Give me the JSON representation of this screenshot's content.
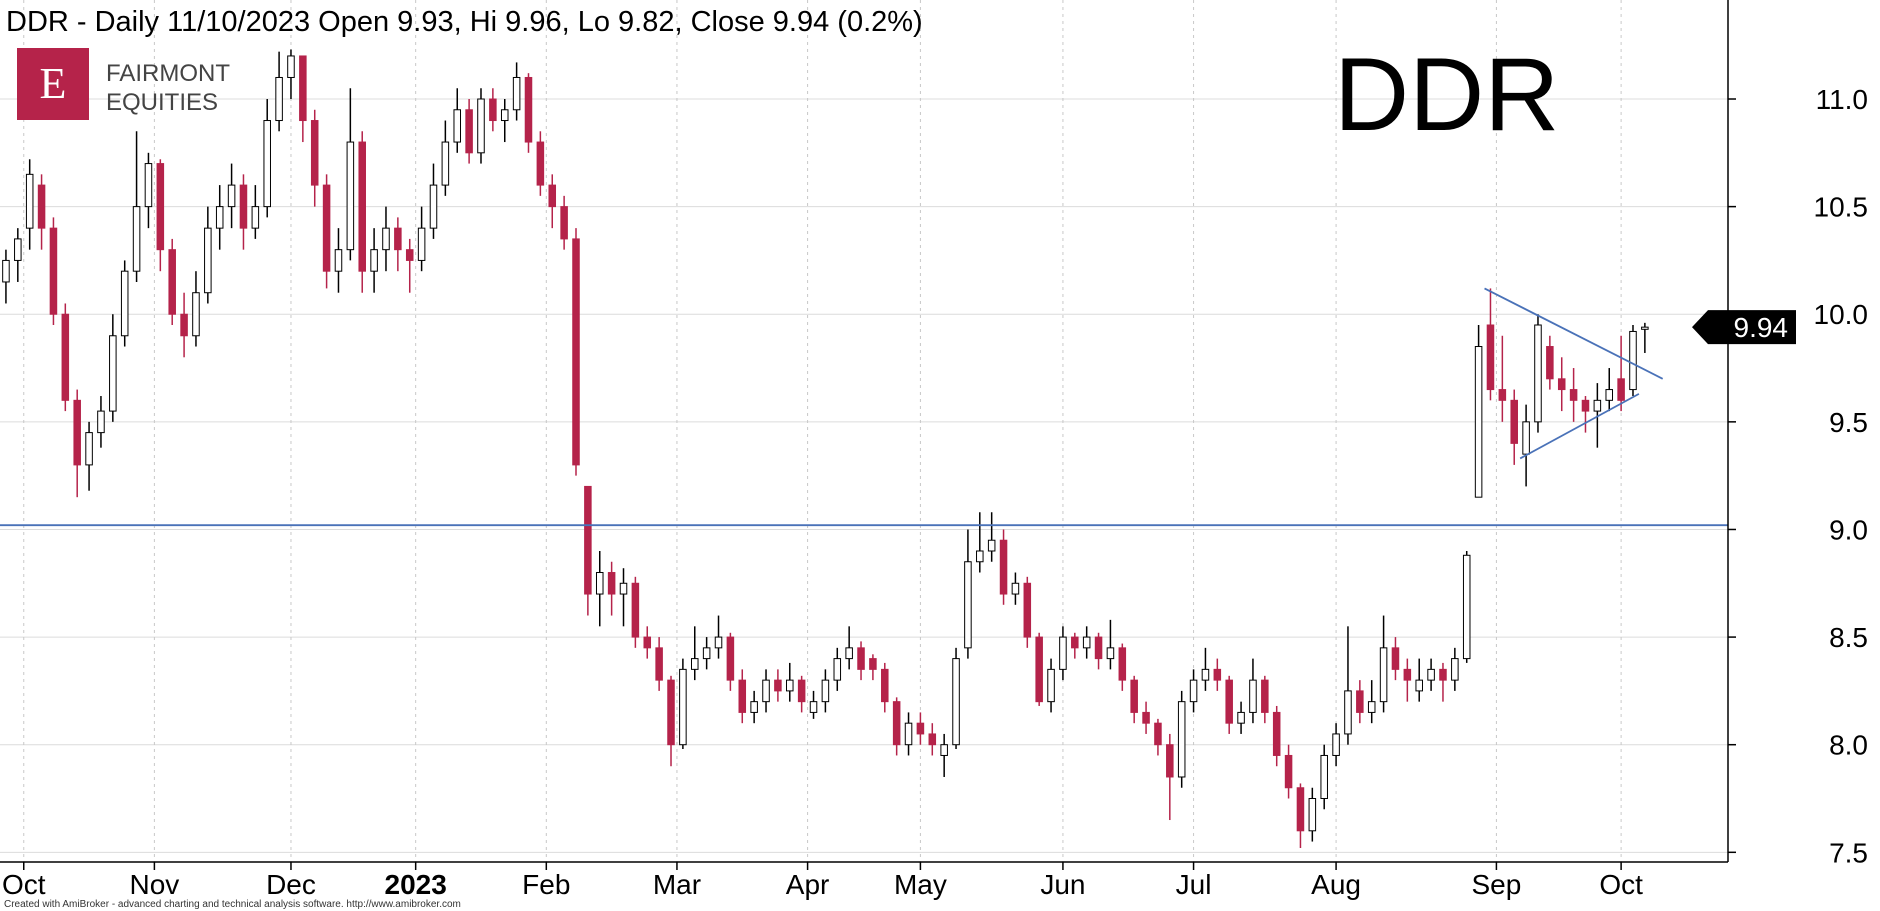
{
  "chart_data": {
    "type": "candlestick",
    "title": "DDR - Daily 11/10/2023 Open 9.93, Hi 9.96, Lo 9.82, Close 9.94 (0.2%)",
    "symbol": "DDR",
    "logo": {
      "letter": "E",
      "line1": "FAIRMONT",
      "line2": "EQUITIES"
    },
    "footer": "Created with AmiBroker - advanced charting and technical analysis software. http://www.amibroker.com",
    "up_color": "#ffffff",
    "down_color": "#b5234a",
    "edge_color": "#000000",
    "open": [
      10.15,
      10.25,
      10.4,
      10.6,
      10.4,
      10.0,
      9.6,
      9.3,
      9.45,
      9.55,
      9.9,
      10.2,
      10.5,
      10.7,
      10.3,
      10.0,
      9.9,
      10.1,
      10.4,
      10.5,
      10.6,
      10.4,
      10.5,
      10.9,
      11.1,
      11.2,
      10.9,
      10.6,
      10.2,
      10.3,
      10.8,
      10.2,
      10.3,
      10.4,
      10.3,
      10.25,
      10.4,
      10.6,
      10.8,
      10.95,
      10.75,
      11.0,
      10.9,
      10.95,
      11.1,
      10.8,
      10.6,
      10.5,
      10.35,
      9.2,
      8.7,
      8.8,
      8.7,
      8.75,
      8.5,
      8.45,
      8.3,
      8.0,
      8.35,
      8.4,
      8.45,
      8.5,
      8.3,
      8.15,
      8.2,
      8.3,
      8.25,
      8.3,
      8.15,
      8.2,
      8.3,
      8.4,
      8.45,
      8.4,
      8.35,
      8.2,
      8.0,
      8.1,
      8.05,
      7.95,
      8.0,
      8.45,
      8.85,
      8.9,
      8.95,
      8.7,
      8.75,
      8.5,
      8.2,
      8.35,
      8.5,
      8.45,
      8.5,
      8.4,
      8.45,
      8.3,
      8.15,
      8.1,
      8.0,
      7.85,
      8.2,
      8.3,
      8.35,
      8.3,
      8.1,
      8.15,
      8.3,
      8.15,
      7.95,
      7.8,
      7.6,
      7.75,
      7.95,
      8.05,
      8.25,
      8.15,
      8.2,
      8.45,
      8.35,
      8.25,
      8.3,
      8.35,
      8.3,
      8.4,
      9.15,
      9.95,
      9.65,
      9.6,
      9.35,
      9.5,
      9.85,
      9.7,
      9.65,
      9.6,
      9.55,
      9.6,
      9.7,
      9.65,
      9.93
    ],
    "high": [
      10.3,
      10.4,
      10.72,
      10.65,
      10.45,
      10.05,
      9.65,
      9.5,
      9.62,
      10.0,
      10.25,
      10.85,
      10.75,
      10.72,
      10.35,
      10.1,
      10.2,
      10.5,
      10.6,
      10.7,
      10.65,
      10.6,
      11.0,
      11.22,
      11.23,
      11.2,
      10.95,
      10.65,
      10.4,
      11.05,
      10.85,
      10.4,
      10.5,
      10.45,
      10.35,
      10.5,
      10.7,
      10.9,
      11.05,
      11.0,
      11.05,
      11.05,
      11.0,
      11.17,
      11.12,
      10.85,
      10.65,
      10.55,
      10.4,
      9.2,
      8.9,
      8.85,
      8.82,
      8.78,
      8.55,
      8.5,
      8.32,
      8.4,
      8.55,
      8.5,
      8.6,
      8.52,
      8.35,
      8.25,
      8.35,
      8.35,
      8.38,
      8.32,
      8.25,
      8.35,
      8.45,
      8.55,
      8.48,
      8.42,
      8.38,
      8.22,
      8.15,
      8.15,
      8.1,
      8.05,
      8.45,
      9.0,
      9.08,
      9.08,
      9.0,
      8.8,
      8.78,
      8.52,
      8.4,
      8.55,
      8.52,
      8.55,
      8.52,
      8.58,
      8.47,
      8.32,
      8.2,
      8.12,
      8.05,
      8.25,
      8.35,
      8.45,
      8.4,
      8.32,
      8.2,
      8.4,
      8.32,
      8.18,
      8.0,
      7.82,
      7.8,
      8.0,
      8.1,
      8.55,
      8.3,
      8.3,
      8.6,
      8.5,
      8.4,
      8.4,
      8.4,
      8.38,
      8.45,
      8.9,
      9.95,
      10.12,
      9.9,
      9.65,
      9.58,
      10.0,
      9.9,
      9.8,
      9.75,
      9.62,
      9.68,
      9.75,
      9.9,
      9.95,
      9.96
    ],
    "low": [
      10.05,
      10.15,
      10.3,
      10.3,
      9.95,
      9.55,
      9.15,
      9.18,
      9.38,
      9.5,
      9.85,
      10.15,
      10.4,
      10.2,
      9.95,
      9.8,
      9.85,
      10.05,
      10.3,
      10.4,
      10.3,
      10.35,
      10.45,
      10.85,
      11.0,
      10.8,
      10.5,
      10.12,
      10.1,
      10.25,
      10.1,
      10.1,
      10.2,
      10.2,
      10.1,
      10.2,
      10.35,
      10.55,
      10.75,
      10.7,
      10.7,
      10.85,
      10.8,
      10.9,
      10.75,
      10.55,
      10.4,
      10.3,
      9.25,
      8.6,
      8.55,
      8.6,
      8.55,
      8.45,
      8.4,
      8.25,
      7.9,
      7.98,
      8.3,
      8.35,
      8.4,
      8.25,
      8.1,
      8.1,
      8.15,
      8.2,
      8.2,
      8.15,
      8.12,
      8.15,
      8.25,
      8.35,
      8.3,
      8.3,
      8.15,
      7.95,
      7.95,
      8.0,
      7.95,
      7.85,
      7.98,
      8.4,
      8.8,
      8.85,
      8.65,
      8.65,
      8.45,
      8.18,
      8.15,
      8.3,
      8.4,
      8.4,
      8.35,
      8.35,
      8.25,
      8.1,
      8.05,
      7.95,
      7.65,
      7.8,
      8.15,
      8.25,
      8.25,
      8.05,
      8.05,
      8.1,
      8.1,
      7.9,
      7.75,
      7.52,
      7.55,
      7.7,
      7.9,
      8.0,
      8.1,
      8.1,
      8.15,
      8.3,
      8.2,
      8.2,
      8.25,
      8.2,
      8.25,
      8.38,
      9.15,
      9.6,
      9.5,
      9.3,
      9.2,
      9.45,
      9.65,
      9.55,
      9.5,
      9.45,
      9.38,
      9.55,
      9.55,
      9.62,
      9.82
    ],
    "close": [
      10.25,
      10.35,
      10.65,
      10.4,
      10.0,
      9.6,
      9.3,
      9.45,
      9.55,
      9.9,
      10.2,
      10.5,
      10.7,
      10.3,
      10.0,
      9.9,
      10.1,
      10.4,
      10.5,
      10.6,
      10.4,
      10.5,
      10.9,
      11.1,
      11.2,
      10.9,
      10.6,
      10.2,
      10.3,
      10.8,
      10.2,
      10.3,
      10.4,
      10.3,
      10.25,
      10.4,
      10.6,
      10.8,
      10.95,
      10.75,
      11.0,
      10.9,
      10.95,
      11.1,
      10.8,
      10.6,
      10.5,
      10.35,
      9.3,
      8.7,
      8.8,
      8.7,
      8.75,
      8.5,
      8.45,
      8.3,
      8.0,
      8.35,
      8.4,
      8.45,
      8.5,
      8.3,
      8.15,
      8.2,
      8.3,
      8.25,
      8.3,
      8.2,
      8.2,
      8.3,
      8.4,
      8.45,
      8.35,
      8.35,
      8.2,
      8.0,
      8.1,
      8.05,
      8.0,
      8.0,
      8.4,
      8.85,
      8.9,
      8.95,
      8.7,
      8.75,
      8.5,
      8.2,
      8.35,
      8.5,
      8.45,
      8.5,
      8.4,
      8.45,
      8.3,
      8.15,
      8.1,
      8.0,
      7.85,
      8.2,
      8.3,
      8.35,
      8.3,
      8.1,
      8.15,
      8.3,
      8.15,
      7.95,
      7.8,
      7.6,
      7.75,
      7.95,
      8.05,
      8.25,
      8.15,
      8.2,
      8.45,
      8.35,
      8.3,
      8.3,
      8.35,
      8.3,
      8.4,
      8.88,
      9.85,
      9.65,
      9.6,
      9.4,
      9.5,
      9.95,
      9.7,
      9.65,
      9.6,
      9.55,
      9.6,
      9.65,
      9.6,
      9.92,
      9.94
    ],
    "xlim": [
      -0.5,
      145
    ],
    "xticks": [
      {
        "value": 1.5,
        "label": "Oct"
      },
      {
        "value": 12.5,
        "label": "Nov"
      },
      {
        "value": 24,
        "label": "Dec"
      },
      {
        "value": 34.5,
        "label": "2023"
      },
      {
        "value": 45.5,
        "label": "Feb"
      },
      {
        "value": 56.5,
        "label": "Mar"
      },
      {
        "value": 67.5,
        "label": "Apr"
      },
      {
        "value": 77,
        "label": "May"
      },
      {
        "value": 89,
        "label": "Jun"
      },
      {
        "value": 100,
        "label": "Jul"
      },
      {
        "value": 112,
        "label": "Aug"
      },
      {
        "value": 125.5,
        "label": "Sep"
      },
      {
        "value": 136,
        "label": "Oct"
      }
    ],
    "ylim": [
      7.455,
      11.46
    ],
    "yticks": [
      7.5,
      {
        "value": 8,
        "label": "8.0"
      },
      8.5,
      {
        "value": 9,
        "label": "9.0"
      },
      9.5,
      {
        "value": 10,
        "label": "10.0"
      },
      10.5,
      {
        "value": 11,
        "label": "11.0"
      }
    ],
    "grid": true,
    "hline": {
      "value": 9.02,
      "color": "#4a72b8"
    },
    "trendlines": [
      {
        "x": [
          124.5,
          139.5
        ],
        "y": [
          10.12,
          9.7
        ],
        "color": "#4a72b8"
      },
      {
        "x": [
          127.5,
          137.5
        ],
        "y": [
          9.33,
          9.63
        ],
        "color": "#4a72b8"
      }
    ]
  }
}
